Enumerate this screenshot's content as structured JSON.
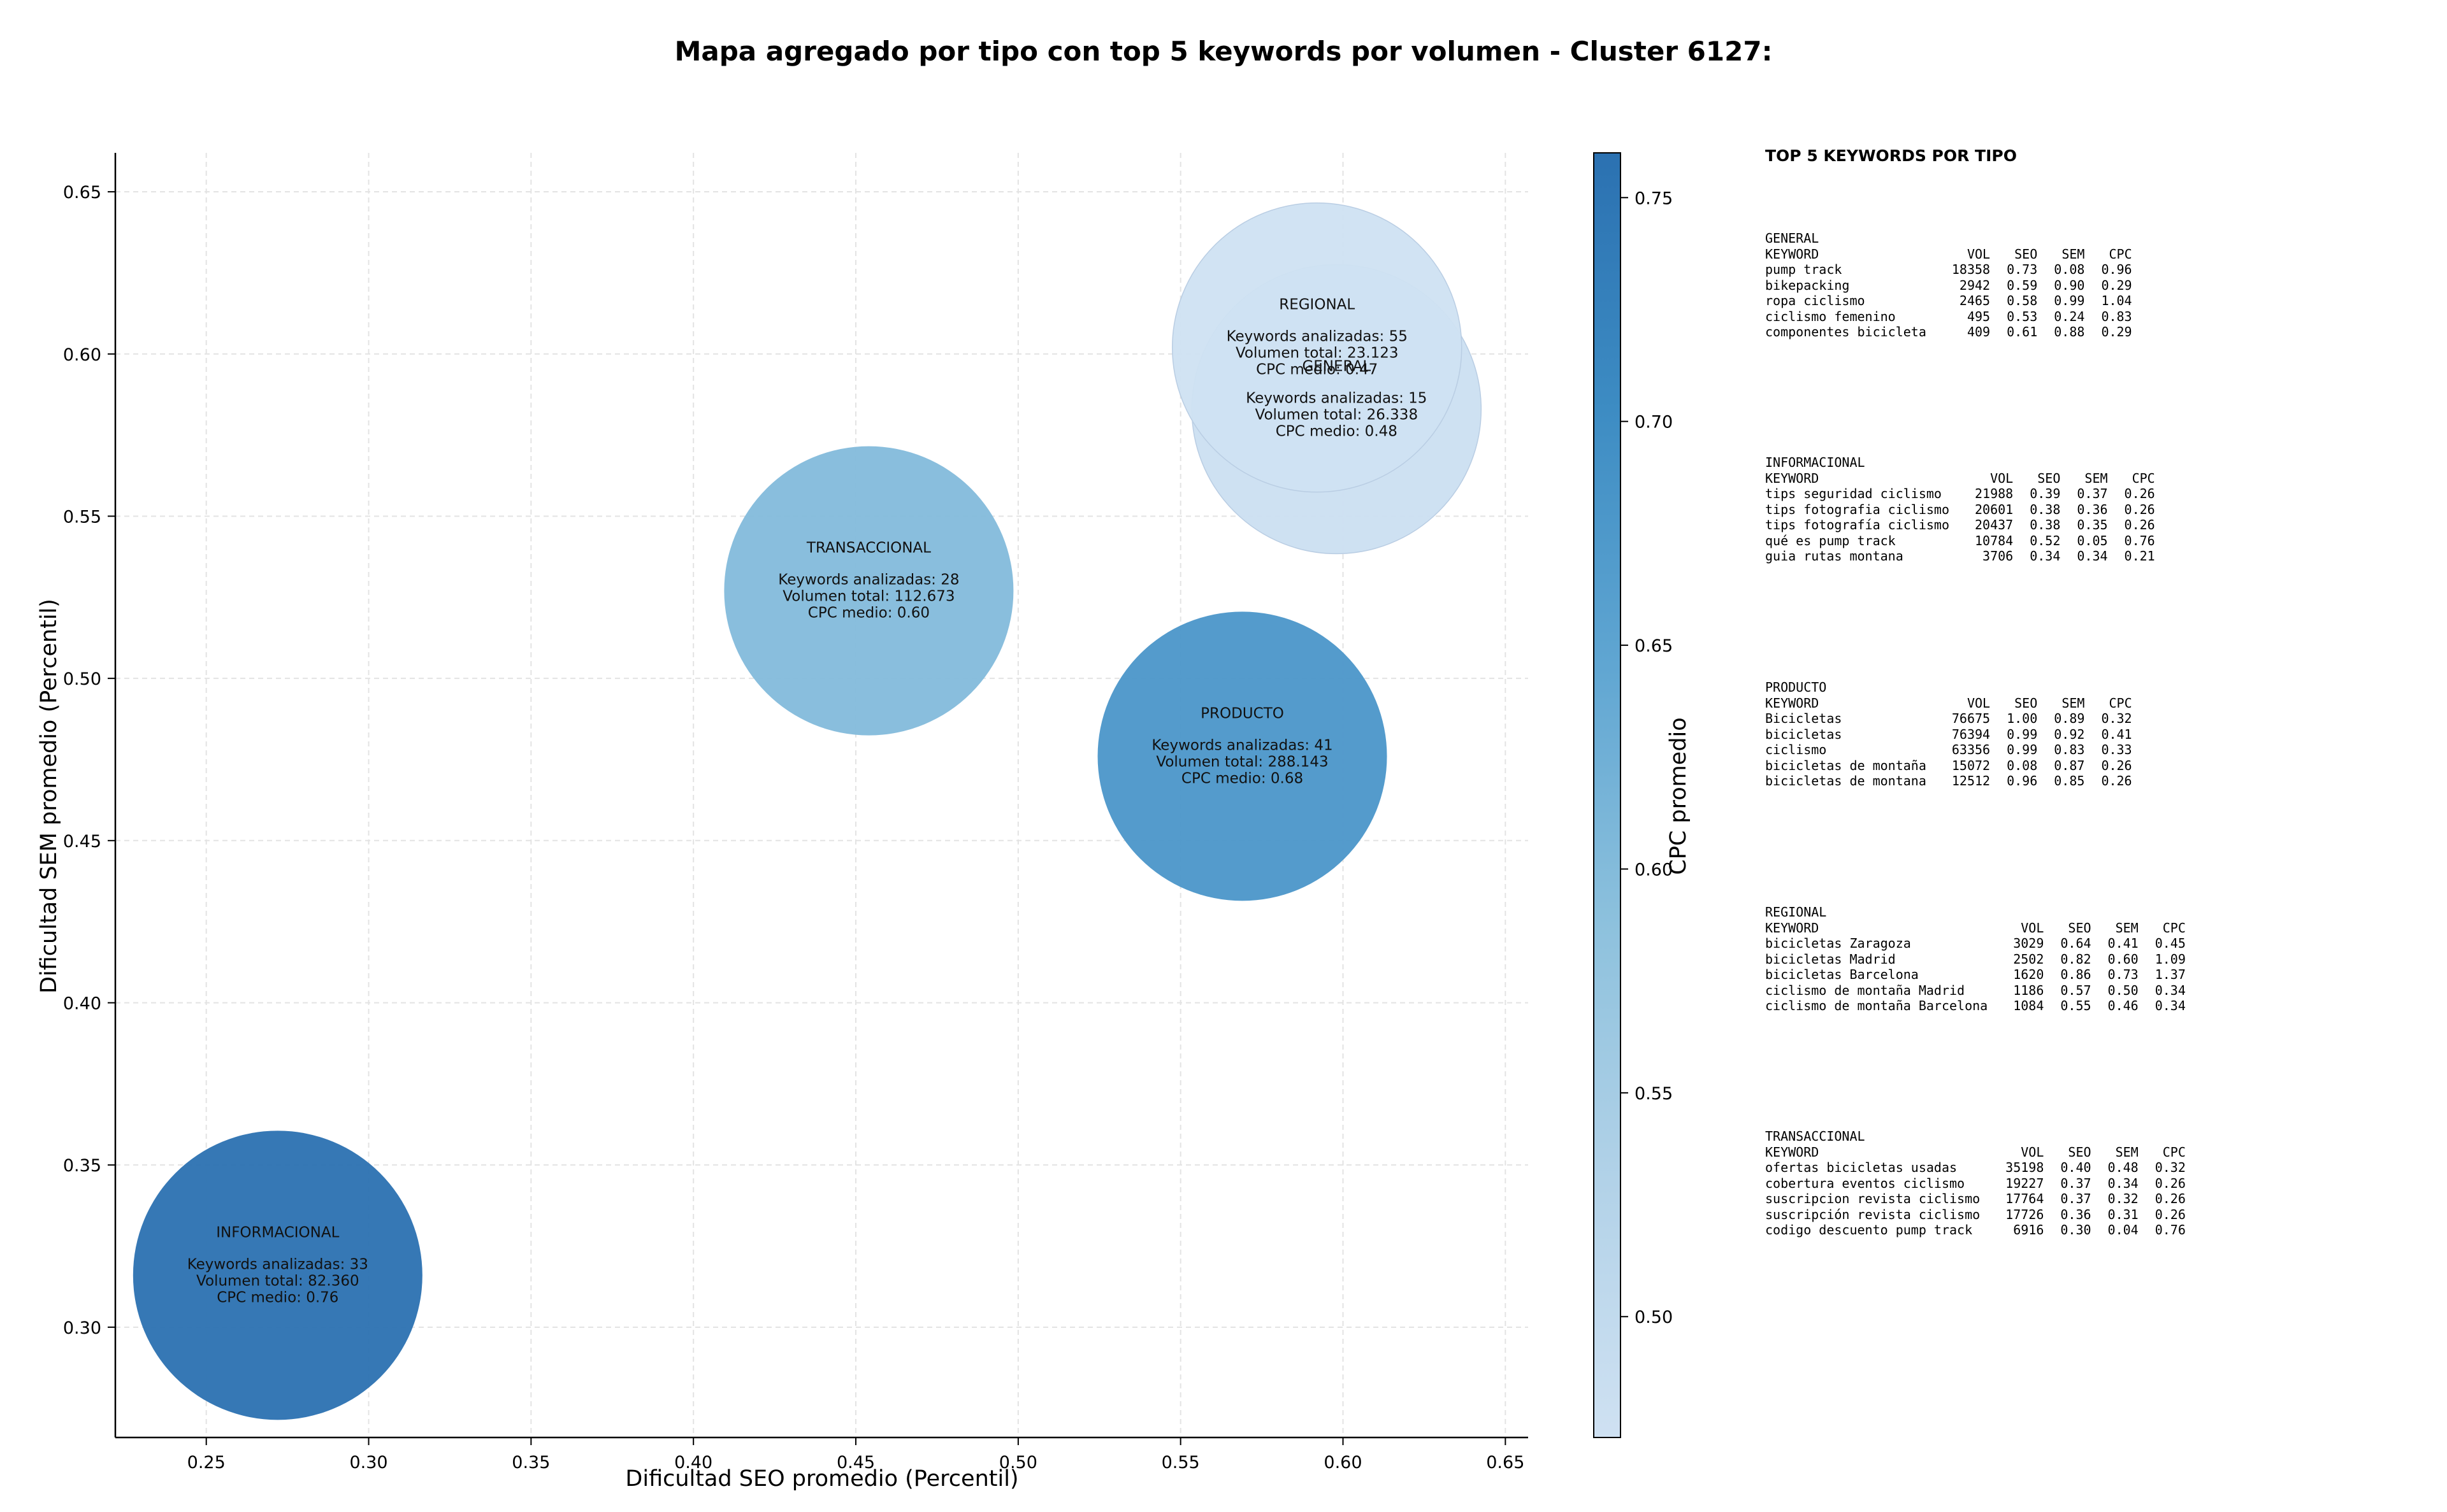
{
  "chart_data": {
    "type": "scatter",
    "title": "Mapa agregado por tipo con top 5 keywords por volumen - Cluster 6127:",
    "xlabel": "Dificultad SEO promedio (Percentil)",
    "ylabel": "Dificultad SEM promedio (Percentil)",
    "xlim": [
      0.222,
      0.657
    ],
    "ylim": [
      0.266,
      0.662
    ],
    "xticks": [
      "0.25",
      "0.30",
      "0.35",
      "0.40",
      "0.45",
      "0.50",
      "0.55",
      "0.60",
      "0.65"
    ],
    "yticks": [
      "0.30",
      "0.35",
      "0.40",
      "0.45",
      "0.50",
      "0.55",
      "0.60",
      "0.65"
    ],
    "grid": true,
    "colorbar": {
      "label": "CPC promedio",
      "range": [
        0.473,
        0.76
      ],
      "ticks": [
        "0.50",
        "0.55",
        "0.60",
        "0.65",
        "0.70",
        "0.75"
      ],
      "colors": [
        "#cfe1f2",
        "#b2d2e8",
        "#8dc1dd",
        "#60a6d2",
        "#3d8cc3",
        "#2b71b1"
      ]
    },
    "points": [
      {
        "name": "INFORMACIONAL",
        "x": 0.272,
        "y": 0.316,
        "keywords_label": "Keywords analizadas: 33",
        "volume_label": "Volumen total: 82.360",
        "cpc_label": "CPC medio: 0.76",
        "cpc": 0.76,
        "keywords": 33,
        "volume": 82360
      },
      {
        "name": "TRANSACCIONAL",
        "x": 0.454,
        "y": 0.527,
        "keywords_label": "Keywords analizadas: 28",
        "volume_label": "Volumen total: 112.673",
        "cpc_label": "CPC medio: 0.60",
        "cpc": 0.6,
        "keywords": 28,
        "volume": 112673
      },
      {
        "name": "PRODUCTO",
        "x": 0.569,
        "y": 0.476,
        "keywords_label": "Keywords analizadas: 41",
        "volume_label": "Volumen total: 288.143",
        "cpc_label": "CPC medio: 0.68",
        "cpc": 0.68,
        "keywords": 41,
        "volume": 288143
      },
      {
        "name": "GENERAL",
        "x": 0.598,
        "y": 0.583,
        "keywords_label": "Keywords analizadas: 15",
        "volume_label": "Volumen total: 26.338",
        "cpc_label": "CPC medio: 0.48",
        "cpc": 0.48,
        "keywords": 15,
        "volume": 26338
      },
      {
        "name": "REGIONAL",
        "x": 0.592,
        "y": 0.602,
        "keywords_label": "Keywords analizadas: 55",
        "volume_label": "Volumen total: 23.123",
        "cpc_label": "CPC medio: 0.47",
        "cpc": 0.47,
        "keywords": 55,
        "volume": 23123
      }
    ]
  },
  "side_panel": {
    "heading": "TOP 5 KEYWORDS POR TIPO",
    "columns": {
      "keyword": "KEYWORD",
      "vol": "VOL",
      "seo": "SEO",
      "sem": "SEM",
      "cpc": "CPC"
    },
    "groups": [
      {
        "type": "GENERAL",
        "rows": [
          {
            "keyword": "pump track",
            "vol": "18358",
            "seo": "0.73",
            "sem": "0.08",
            "cpc": "0.96"
          },
          {
            "keyword": "bikepacking",
            "vol": "2942",
            "seo": "0.59",
            "sem": "0.90",
            "cpc": "0.29"
          },
          {
            "keyword": "ropa ciclismo",
            "vol": "2465",
            "seo": "0.58",
            "sem": "0.99",
            "cpc": "1.04"
          },
          {
            "keyword": "ciclismo femenino",
            "vol": "495",
            "seo": "0.53",
            "sem": "0.24",
            "cpc": "0.83"
          },
          {
            "keyword": "componentes bicicleta",
            "vol": "409",
            "seo": "0.61",
            "sem": "0.88",
            "cpc": "0.29"
          }
        ]
      },
      {
        "type": "INFORMACIONAL",
        "rows": [
          {
            "keyword": "tips seguridad ciclismo",
            "vol": "21988",
            "seo": "0.39",
            "sem": "0.37",
            "cpc": "0.26"
          },
          {
            "keyword": "tips fotografia ciclismo",
            "vol": "20601",
            "seo": "0.38",
            "sem": "0.36",
            "cpc": "0.26"
          },
          {
            "keyword": "tips fotografía ciclismo",
            "vol": "20437",
            "seo": "0.38",
            "sem": "0.35",
            "cpc": "0.26"
          },
          {
            "keyword": "qué es pump track",
            "vol": "10784",
            "seo": "0.52",
            "sem": "0.05",
            "cpc": "0.76"
          },
          {
            "keyword": "guia rutas montana",
            "vol": "3706",
            "seo": "0.34",
            "sem": "0.34",
            "cpc": "0.21"
          }
        ]
      },
      {
        "type": "PRODUCTO",
        "rows": [
          {
            "keyword": "Bicicletas",
            "vol": "76675",
            "seo": "1.00",
            "sem": "0.89",
            "cpc": "0.32"
          },
          {
            "keyword": "bicicletas",
            "vol": "76394",
            "seo": "0.99",
            "sem": "0.92",
            "cpc": "0.41"
          },
          {
            "keyword": "ciclismo",
            "vol": "63356",
            "seo": "0.99",
            "sem": "0.83",
            "cpc": "0.33"
          },
          {
            "keyword": "bicicletas de montaña",
            "vol": "15072",
            "seo": "0.08",
            "sem": "0.87",
            "cpc": "0.26"
          },
          {
            "keyword": "bicicletas de montana",
            "vol": "12512",
            "seo": "0.96",
            "sem": "0.85",
            "cpc": "0.26"
          }
        ]
      },
      {
        "type": "REGIONAL",
        "rows": [
          {
            "keyword": "bicicletas Zaragoza",
            "vol": "3029",
            "seo": "0.64",
            "sem": "0.41",
            "cpc": "0.45"
          },
          {
            "keyword": "bicicletas Madrid",
            "vol": "2502",
            "seo": "0.82",
            "sem": "0.60",
            "cpc": "1.09"
          },
          {
            "keyword": "bicicletas Barcelona",
            "vol": "1620",
            "seo": "0.86",
            "sem": "0.73",
            "cpc": "1.37"
          },
          {
            "keyword": "ciclismo de montaña Madrid",
            "vol": "1186",
            "seo": "0.57",
            "sem": "0.50",
            "cpc": "0.34"
          },
          {
            "keyword": "ciclismo de montaña Barcelona",
            "vol": "1084",
            "seo": "0.55",
            "sem": "0.46",
            "cpc": "0.34"
          }
        ]
      },
      {
        "type": "TRANSACCIONAL",
        "rows": [
          {
            "keyword": "ofertas bicicletas usadas",
            "vol": "35198",
            "seo": "0.40",
            "sem": "0.48",
            "cpc": "0.32"
          },
          {
            "keyword": "cobertura eventos ciclismo",
            "vol": "19227",
            "seo": "0.37",
            "sem": "0.34",
            "cpc": "0.26"
          },
          {
            "keyword": "suscripcion revista ciclismo",
            "vol": "17764",
            "seo": "0.37",
            "sem": "0.32",
            "cpc": "0.26"
          },
          {
            "keyword": "suscripción revista ciclismo",
            "vol": "17726",
            "seo": "0.36",
            "sem": "0.31",
            "cpc": "0.26"
          },
          {
            "keyword": "codigo descuento pump track",
            "vol": "6916",
            "seo": "0.30",
            "sem": "0.04",
            "cpc": "0.76"
          }
        ]
      }
    ]
  }
}
